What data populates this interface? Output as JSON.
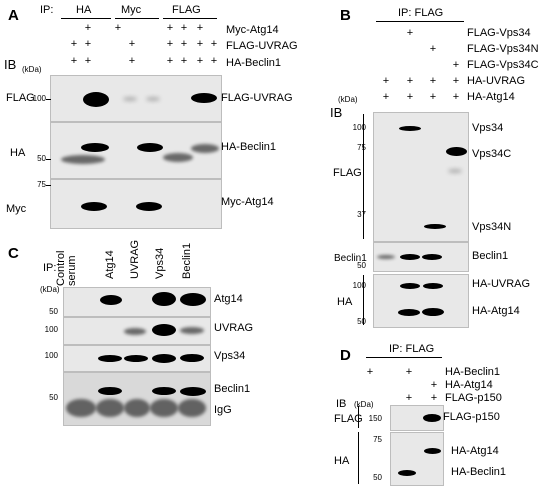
{
  "panelA": {
    "letter": "A",
    "ip_label": "IP:",
    "ip_groups": [
      "HA",
      "Myc",
      "FLAG"
    ],
    "conditions": [
      "Myc-Atg14",
      "FLAG-UVRAG",
      "HA-Beclin1"
    ],
    "condition_rows": [
      [
        "",
        "+",
        "+",
        "",
        "+",
        "+",
        "+",
        ""
      ],
      [
        "+",
        "+",
        "",
        "+",
        "+",
        "+",
        "+",
        "+"
      ],
      [
        "+",
        "+",
        "",
        "+",
        "+",
        "+",
        "+",
        "+"
      ]
    ],
    "ib_label": "IB",
    "kda": "(kDa)",
    "blots": [
      {
        "side": "FLAG",
        "marker": "100",
        "band": "FLAG-UVRAG"
      },
      {
        "side": "HA",
        "marker": "50",
        "band": "HA-Beclin1"
      },
      {
        "side": "Myc",
        "marker": "75",
        "band": "Myc-Atg14"
      }
    ]
  },
  "panelB": {
    "letter": "B",
    "ip_label": "IP: FLAG",
    "conditions": [
      "FLAG-Vps34",
      "FLAG-Vps34N",
      "FLAG-Vps34C",
      "HA-UVRAG",
      "HA-Atg14"
    ],
    "ib_label": "IB",
    "kda": "(kDa)",
    "flag_side": "FLAG",
    "flag_markers": [
      "100",
      "75",
      "37"
    ],
    "flag_bands": [
      "Vps34",
      "Vps34C",
      "Vps34N"
    ],
    "beclin_side": "Beclin1",
    "beclin_marker": "50",
    "beclin_band": "Beclin1",
    "ha_side": "HA",
    "ha_markers": [
      "100",
      "50"
    ],
    "ha_bands": [
      "HA-UVRAG",
      "HA-Atg14"
    ]
  },
  "panelC": {
    "letter": "C",
    "ip_label": "IP:",
    "lanes": [
      "Control\nserum",
      "Atg14",
      "UVRAG",
      "Vps34",
      "Beclin1"
    ],
    "kda": "(kDa)",
    "markers": [
      "50",
      "100",
      "100",
      "50"
    ],
    "bands": [
      "Atg14",
      "UVRAG",
      "Vps34",
      "Beclin1",
      "IgG"
    ]
  },
  "panelD": {
    "letter": "D",
    "ip_label": "IP: FLAG",
    "conditions": [
      "HA-Beclin1",
      "HA-Atg14",
      "FLAG-p150"
    ],
    "ib_label": "IB",
    "kda": "(kDa)",
    "flag_side": "FLAG",
    "flag_marker": "150",
    "flag_band": "FLAG-p150",
    "ha_side": "HA",
    "ha_markers": [
      "75",
      "50"
    ],
    "ha_bands": [
      "HA-Atg14",
      "HA-Beclin1"
    ]
  }
}
